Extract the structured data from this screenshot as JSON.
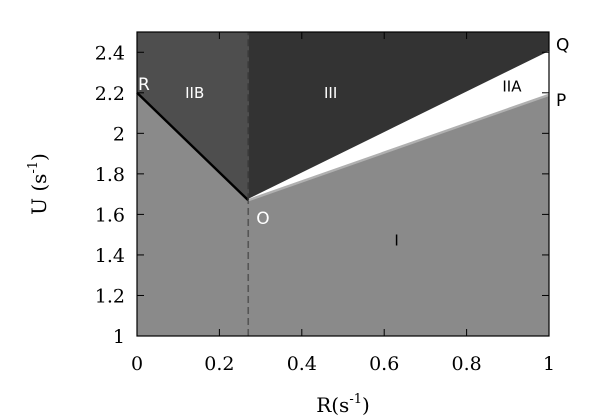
{
  "chart_data": {
    "type": "area",
    "title": "",
    "xlabel": "R(s",
    "xlabel_sup": "-1",
    "xlabel_close": ")",
    "ylabel": "U (s",
    "ylabel_sup": "-1",
    "ylabel_close": ")",
    "xlim": [
      0,
      1
    ],
    "ylim": [
      1,
      2.5
    ],
    "xticks": [
      0,
      0.2,
      0.4,
      0.6,
      0.8,
      1
    ],
    "xtick_labels": [
      "0",
      "0.2",
      "0.4",
      "0.6",
      "0.8",
      "1"
    ],
    "yticks": [
      1,
      1.2,
      1.4,
      1.6,
      1.8,
      2,
      2.2,
      2.4
    ],
    "ytick_labels": [
      "1",
      "1.2",
      "1.4",
      "1.6",
      "1.8",
      "2",
      "2.2",
      "2.4"
    ],
    "grid": false,
    "points": {
      "R": {
        "label": "R",
        "x": 0,
        "y": 2.2
      },
      "O": {
        "label": "O",
        "x": 0.27,
        "y": 1.67
      },
      "Q": {
        "label": "Q",
        "x": 1,
        "y": 2.4
      },
      "P": {
        "label": "P",
        "x": 1,
        "y": 2.19
      }
    },
    "boundaries": [
      {
        "from": "R",
        "to": "O",
        "style": "solid",
        "color": "#000000"
      },
      {
        "from": "O",
        "to": "Q",
        "style": "solid",
        "color": "#ffffff"
      },
      {
        "from": "O",
        "to": "P",
        "style": "solid",
        "color": "#b0b0b0"
      },
      {
        "x": 0.27,
        "y_from": 1,
        "y_to": 1.67,
        "style": "dashed",
        "color": "#555555"
      },
      {
        "x": 0.27,
        "y_from": 1.67,
        "y_to": 2.5,
        "style": "dashed",
        "color": "#3a3a3a"
      }
    ],
    "regions": [
      {
        "name": "I",
        "label": "I",
        "color": "#8a8a8a",
        "label_pos": {
          "x": 0.63,
          "y": 1.47
        },
        "label_color": "#000000"
      },
      {
        "name": "IIA",
        "label": "IIA",
        "color": "#ffffff",
        "label_pos": {
          "x": 0.91,
          "y": 2.23
        },
        "label_color": "#000000"
      },
      {
        "name": "IIB",
        "label": "IIB",
        "color": "#4e4e4e",
        "label_pos": {
          "x": 0.14,
          "y": 2.2
        },
        "label_color": "#ffffff"
      },
      {
        "name": "III",
        "label": "III",
        "color": "#333333",
        "label_pos": {
          "x": 0.47,
          "y": 2.2
        },
        "label_color": "#ffffff"
      }
    ]
  }
}
